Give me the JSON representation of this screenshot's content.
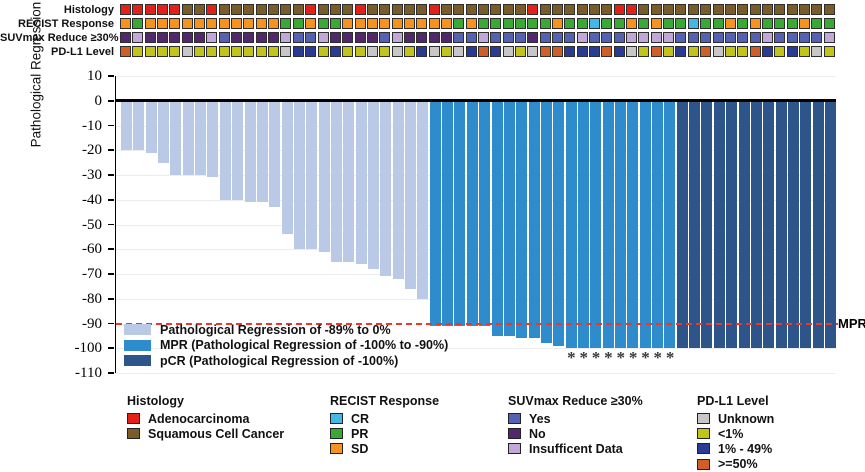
{
  "figure": {
    "mpr_reference_label": "MPR"
  },
  "annotation_tracks": [
    {
      "label": "Histology",
      "palette": {
        "A": "#e3211b",
        "S": "#7a5c2b"
      },
      "legend": [
        {
          "code": "A",
          "label": "Adenocarcinoma"
        },
        {
          "code": "S",
          "label": "Squamous Cell Cancer"
        }
      ],
      "values": [
        "A",
        "A",
        "A",
        "A",
        "A",
        "S",
        "S",
        "A",
        "S",
        "S",
        "S",
        "S",
        "S",
        "S",
        "S",
        "A",
        "S",
        "S",
        "S",
        "A",
        "S",
        "S",
        "S",
        "S",
        "S",
        "A",
        "S",
        "S",
        "S",
        "S",
        "S",
        "S",
        "S",
        "A",
        "S",
        "S",
        "S",
        "S",
        "S",
        "S",
        "A",
        "A",
        "S",
        "S",
        "S",
        "S",
        "S",
        "S",
        "S",
        "S",
        "S",
        "S",
        "S",
        "S",
        "S",
        "S",
        "S",
        "S"
      ]
    },
    {
      "label": "RECIST Response",
      "palette": {
        "CR": "#45b6e8",
        "PR": "#39a935",
        "SD": "#f6921e"
      },
      "legend": [
        {
          "code": "CR",
          "label": "CR"
        },
        {
          "code": "PR",
          "label": "PR"
        },
        {
          "code": "SD",
          "label": "SD"
        }
      ],
      "values": [
        "SD",
        "PR",
        "SD",
        "SD",
        "SD",
        "SD",
        "SD",
        "SD",
        "SD",
        "SD",
        "SD",
        "SD",
        "SD",
        "PR",
        "PR",
        "SD",
        "PR",
        "PR",
        "SD",
        "SD",
        "SD",
        "SD",
        "SD",
        "SD",
        "SD",
        "SD",
        "SD",
        "PR",
        "SD",
        "PR",
        "PR",
        "PR",
        "PR",
        "PR",
        "PR",
        "SD",
        "PR",
        "PR",
        "CR",
        "PR",
        "PR",
        "SD",
        "PR",
        "SD",
        "PR",
        "PR",
        "CR",
        "PR",
        "PR",
        "SD",
        "PR",
        "SD",
        "PR",
        "PR",
        "PR",
        "SD",
        "PR",
        "PR"
      ]
    },
    {
      "label": "SUVmax Reduce ≥30%",
      "palette": {
        "Y": "#5561b2",
        "N": "#53276b",
        "I": "#c2a7d9"
      },
      "legend": [
        {
          "code": "Y",
          "label": "Yes"
        },
        {
          "code": "N",
          "label": "No"
        },
        {
          "code": "I",
          "label": "Insufficent Data"
        }
      ],
      "values": [
        "N",
        "I",
        "N",
        "N",
        "N",
        "N",
        "N",
        "I",
        "Y",
        "N",
        "N",
        "N",
        "N",
        "I",
        "Y",
        "Y",
        "I",
        "N",
        "N",
        "N",
        "N",
        "Y",
        "I",
        "N",
        "N",
        "N",
        "N",
        "Y",
        "Y",
        "I",
        "Y",
        "Y",
        "Y",
        "N",
        "Y",
        "Y",
        "Y",
        "I",
        "Y",
        "Y",
        "Y",
        "I",
        "I",
        "I",
        "I",
        "Y",
        "Y",
        "Y",
        "Y",
        "Y",
        "Y",
        "Y",
        "I",
        "Y",
        "Y",
        "Y",
        "Y",
        "I"
      ]
    },
    {
      "label": "PD-L1 Level",
      "palette": {
        "U": "#c7c7c7",
        "L": "#c2c419",
        "M": "#2a3b96",
        "H": "#ce5f28"
      },
      "legend": [
        {
          "code": "U",
          "label": "Unknown"
        },
        {
          "code": "L",
          "label": "<1%"
        },
        {
          "code": "M",
          "label": "1% - 49%"
        },
        {
          "code": "H",
          "label": ">=50%"
        }
      ],
      "values": [
        "H",
        "L",
        "L",
        "L",
        "L",
        "U",
        "L",
        "L",
        "L",
        "L",
        "L",
        "L",
        "L",
        "U",
        "M",
        "M",
        "L",
        "M",
        "L",
        "L",
        "U",
        "L",
        "U",
        "L",
        "M",
        "U",
        "L",
        "U",
        "M",
        "H",
        "M",
        "U",
        "L",
        "U",
        "H",
        "H",
        "M",
        "M",
        "M",
        "H",
        "M",
        "U",
        "L",
        "H",
        "L",
        "M",
        "L",
        "H",
        "U",
        "L",
        "L",
        "H",
        "M",
        "L",
        "M",
        "L",
        "U",
        "L"
      ]
    }
  ],
  "chart_data": {
    "type": "bar",
    "title": "",
    "xlabel": "",
    "ylabel": "Pathological Regression (%)",
    "ylim": [
      -110,
      10
    ],
    "yticks": [
      10,
      0,
      -10,
      -20,
      -30,
      -40,
      -50,
      -60,
      -70,
      -80,
      -90,
      -100,
      -110
    ],
    "grid": true,
    "n_patients": 58,
    "values": [
      -20,
      -20,
      -21,
      -25,
      -30,
      -30,
      -30,
      -31,
      -40,
      -40,
      -41,
      -41,
      -43,
      -54,
      -60,
      -60,
      -61,
      -65,
      -65,
      -66,
      -68,
      -71,
      -72,
      -76,
      -80,
      -91,
      -91,
      -91,
      -91,
      -91,
      -95,
      -95,
      -96,
      -96,
      -98,
      -99,
      -100,
      -100,
      -100,
      -100,
      -100,
      -100,
      -100,
      -100,
      -100,
      -100,
      -100,
      -100,
      -100,
      -100,
      -100,
      -100,
      -100,
      -100,
      -100,
      -100,
      -100,
      -100
    ],
    "bar_categories": [
      "reg",
      "reg",
      "reg",
      "reg",
      "reg",
      "reg",
      "reg",
      "reg",
      "reg",
      "reg",
      "reg",
      "reg",
      "reg",
      "reg",
      "reg",
      "reg",
      "reg",
      "reg",
      "reg",
      "reg",
      "reg",
      "reg",
      "reg",
      "reg",
      "reg",
      "mpr",
      "mpr",
      "mpr",
      "mpr",
      "mpr",
      "mpr",
      "mpr",
      "mpr",
      "mpr",
      "mpr",
      "mpr",
      "mpr",
      "mpr",
      "mpr",
      "mpr",
      "mpr",
      "mpr",
      "mpr",
      "mpr",
      "mpr",
      "pcr",
      "pcr",
      "pcr",
      "pcr",
      "pcr",
      "pcr",
      "pcr",
      "pcr",
      "pcr",
      "pcr",
      "pcr",
      "pcr",
      "pcr"
    ],
    "bar_palette": {
      "reg": "#b9c9e6",
      "mpr": "#2e8ccd",
      "pcr": "#2d5589"
    },
    "starred_columns": [
      37,
      38,
      39,
      40,
      41,
      42,
      43,
      44,
      45
    ],
    "star_glyph": "*",
    "reference_line": {
      "value": -90,
      "color": "#e8392e",
      "style": "dashed",
      "label": "MPR"
    },
    "legend_position": "lower left",
    "legend": [
      {
        "swatch": "reg",
        "label": "Pathological Regression of -89% to 0%"
      },
      {
        "swatch": "mpr",
        "label": "MPR (Pathological Regression of -100% to -90%)"
      },
      {
        "swatch": "pcr",
        "label": "pCR (Pathological Regression of -100%)"
      }
    ]
  }
}
